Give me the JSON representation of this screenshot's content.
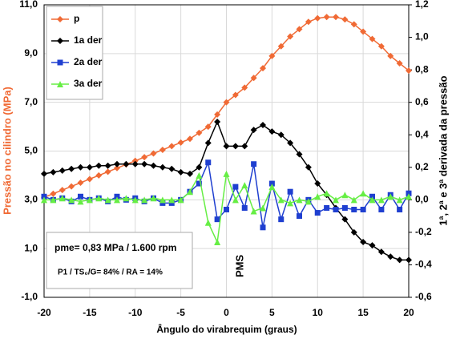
{
  "chart_data": {
    "type": "line",
    "x_label": "Ângulo do virabrequim (graus)",
    "y_label": "Pressão no cilindro (MPa)",
    "y2_label": "1ª, 2ª e 3ª derivada da pressão",
    "x": [
      -20,
      -19,
      -18,
      -17,
      -16,
      -15,
      -14,
      -13,
      -12,
      -11,
      -10,
      -9,
      -8,
      -7,
      -6,
      -5,
      -4,
      -3,
      -2,
      -1,
      0,
      1,
      2,
      3,
      4,
      5,
      6,
      7,
      8,
      9,
      10,
      11,
      12,
      13,
      14,
      15,
      16,
      17,
      18,
      19,
      20
    ],
    "series": [
      {
        "name": "p",
        "color": "#f06a35",
        "marker": "diamond",
        "axis": "y",
        "values": [
          3.1,
          3.25,
          3.4,
          3.55,
          3.7,
          3.85,
          4.0,
          4.15,
          4.3,
          4.45,
          4.6,
          4.75,
          4.9,
          5.05,
          5.2,
          5.35,
          5.5,
          5.75,
          6.0,
          6.5,
          7.0,
          7.3,
          7.6,
          8.0,
          8.4,
          8.9,
          9.3,
          9.7,
          10.0,
          10.3,
          10.45,
          10.5,
          10.5,
          10.4,
          10.2,
          9.9,
          9.6,
          9.3,
          8.9,
          8.6,
          8.3
        ]
      },
      {
        "name": "1a der",
        "color": "#000000",
        "marker": "diamond",
        "axis": "y2",
        "values": [
          0.16,
          0.17,
          0.18,
          0.19,
          0.2,
          0.2,
          0.21,
          0.21,
          0.22,
          0.22,
          0.22,
          0.22,
          0.21,
          0.2,
          0.19,
          0.17,
          0.16,
          0.2,
          0.35,
          0.48,
          0.33,
          0.33,
          0.33,
          0.43,
          0.46,
          0.42,
          0.4,
          0.35,
          0.28,
          0.2,
          0.1,
          0.03,
          -0.05,
          -0.12,
          -0.2,
          -0.26,
          -0.28,
          -0.32,
          -0.35,
          -0.37,
          -0.37
        ]
      },
      {
        "name": "2a der",
        "color": "#1f3fd0",
        "marker": "square",
        "axis": "y2",
        "values": [
          0.02,
          0.0,
          0.01,
          -0.01,
          0.02,
          0.0,
          0.01,
          -0.01,
          0.02,
          0.0,
          0.01,
          -0.01,
          0.01,
          -0.02,
          -0.02,
          0.0,
          0.05,
          0.1,
          0.23,
          -0.12,
          -0.06,
          0.08,
          -0.05,
          0.22,
          -0.17,
          0.1,
          -0.12,
          0.05,
          -0.1,
          0.0,
          -0.08,
          -0.05,
          -0.06,
          -0.05,
          -0.06,
          -0.06,
          0.02,
          -0.06,
          0.03,
          -0.06,
          0.04
        ]
      },
      {
        "name": "3a der",
        "color": "#66ee44",
        "marker": "triangle",
        "axis": "y2",
        "values": [
          0.0,
          0.0,
          0.01,
          0.0,
          -0.01,
          0.0,
          0.01,
          0.0,
          0.0,
          0.01,
          0.0,
          0.0,
          0.01,
          0.0,
          0.0,
          0.0,
          0.05,
          0.15,
          -0.14,
          -0.26,
          0.16,
          0.0,
          0.09,
          -0.07,
          -0.05,
          0.08,
          0.0,
          -0.02,
          0.0,
          -0.01,
          0.02,
          0.04,
          0.0,
          0.03,
          0.0,
          0.04,
          0.0,
          0.0,
          0.02,
          0.0,
          0.02
        ]
      }
    ],
    "xlim": [
      -20,
      20
    ],
    "xticks": [
      -20,
      -15,
      -10,
      -5,
      0,
      5,
      10,
      15,
      20
    ],
    "ylim": [
      -1,
      11
    ],
    "yticks": [
      {
        "value": -1,
        "label": "-1,0"
      },
      {
        "value": 1,
        "label": "1,0"
      },
      {
        "value": 3,
        "label": "3,0"
      },
      {
        "value": 5,
        "label": "5,0"
      },
      {
        "value": 7,
        "label": "7,0"
      },
      {
        "value": 9,
        "label": "9,0"
      },
      {
        "value": 11,
        "label": "11,0"
      }
    ],
    "y2lim": [
      -0.6,
      1.2
    ],
    "y2ticks": [
      {
        "value": -0.6,
        "label": "-0,6"
      },
      {
        "value": -0.4,
        "label": "-0,4"
      },
      {
        "value": -0.2,
        "label": "-0,2"
      },
      {
        "value": 0,
        "label": "0,0"
      },
      {
        "value": 0.2,
        "label": "0,2"
      },
      {
        "value": 0.4,
        "label": "0,4"
      },
      {
        "value": 0.6,
        "label": "0,6"
      },
      {
        "value": 0.8,
        "label": "0,8"
      },
      {
        "value": 1.0,
        "label": "1,0"
      },
      {
        "value": 1.2,
        "label": "1,2"
      }
    ],
    "grid": true,
    "legend_position": "upper left",
    "annotations": [
      "pme= 0,83 MPa / 1.600 rpm",
      "P1 / TS₀/G= 84% / RA = 14%",
      "PMS"
    ]
  }
}
